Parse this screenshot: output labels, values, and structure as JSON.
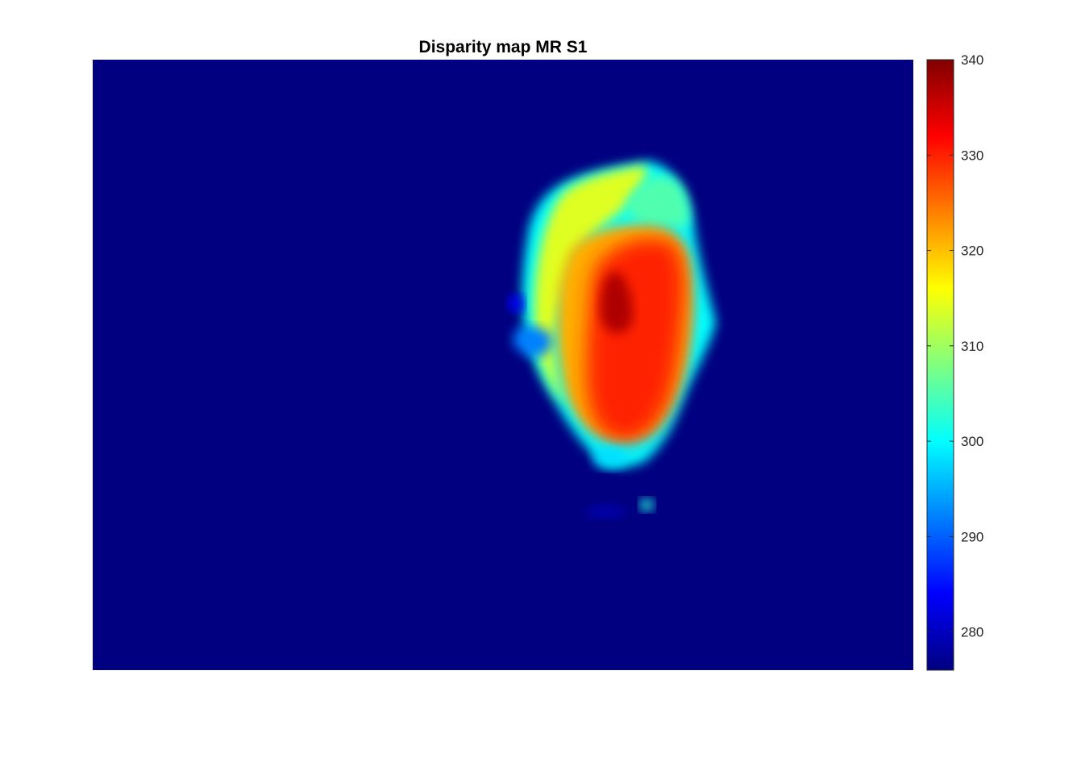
{
  "chart_data": {
    "type": "heatmap",
    "title": "Disparity map MR S1",
    "xlabel": "",
    "ylabel": "",
    "axes_visible": false,
    "grid": false,
    "colormap": "jet",
    "clim": [
      276,
      340
    ],
    "background_value": 276,
    "colorbar": {
      "location": "right",
      "ticks": [
        280,
        290,
        300,
        310,
        320,
        330,
        340
      ],
      "tick_labels": [
        "280",
        "290",
        "300",
        "310",
        "320",
        "330",
        "340"
      ]
    },
    "description_regions": [
      {
        "name": "outer-shell",
        "value": 300
      },
      {
        "name": "upper-left-band",
        "value": 314
      },
      {
        "name": "upper-right-lobe",
        "value": 305
      },
      {
        "name": "mid-ring",
        "value": 321
      },
      {
        "name": "inner-core",
        "value": 330
      },
      {
        "name": "peak",
        "value": 337
      }
    ]
  }
}
